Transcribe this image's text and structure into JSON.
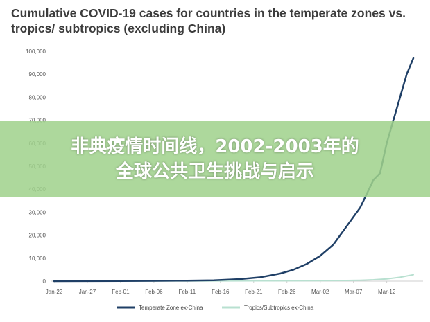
{
  "chart_data": {
    "type": "line",
    "title": "Cumulative COVID-19 cases for countries in the temperate zones vs. tropics/ subtropics (excluding China)",
    "x_ticks": [
      "Jan-22",
      "Jan-27",
      "Feb-01",
      "Feb-06",
      "Feb-11",
      "Feb-16",
      "Feb-21",
      "Feb-26",
      "Mar-02",
      "Mar-07",
      "Mar-12"
    ],
    "y_ticks": [
      "0",
      "10,000",
      "20,000",
      "30,000",
      "40,000",
      "50,000",
      "60,000",
      "70,000",
      "80,000",
      "90,000",
      "100,000"
    ],
    "ylim": [
      0,
      100000
    ],
    "x_days": [
      0,
      5,
      10,
      15,
      20,
      25,
      30,
      35,
      40,
      45,
      50
    ],
    "series": [
      {
        "name": "Temperate Zone ex-China",
        "color": "#1f3f66",
        "x": [
          0,
          5,
          10,
          15,
          20,
          24,
          28,
          31,
          34,
          36,
          38,
          40,
          42,
          44,
          46,
          48,
          49,
          50,
          51,
          52,
          53,
          54
        ],
        "y": [
          0,
          30,
          80,
          150,
          250,
          400,
          900,
          1700,
          3300,
          5000,
          7500,
          11000,
          16000,
          24000,
          32000,
          44000,
          47000,
          60000,
          70000,
          80000,
          90000,
          97000
        ]
      },
      {
        "name": "Tropics/Subtropics ex-China",
        "color": "#b8e0d0",
        "x": [
          0,
          10,
          20,
          30,
          40,
          44,
          46,
          48,
          50,
          52,
          54
        ],
        "y": [
          0,
          50,
          100,
          150,
          200,
          300,
          400,
          600,
          1000,
          1700,
          2800
        ]
      }
    ],
    "legend_position": "bottom",
    "grid": false
  },
  "overlay": {
    "line1": "非典疫情时间线，2002-2003年的",
    "line2": "全球公共卫生挑战与启示",
    "color": "#a0d28c"
  }
}
